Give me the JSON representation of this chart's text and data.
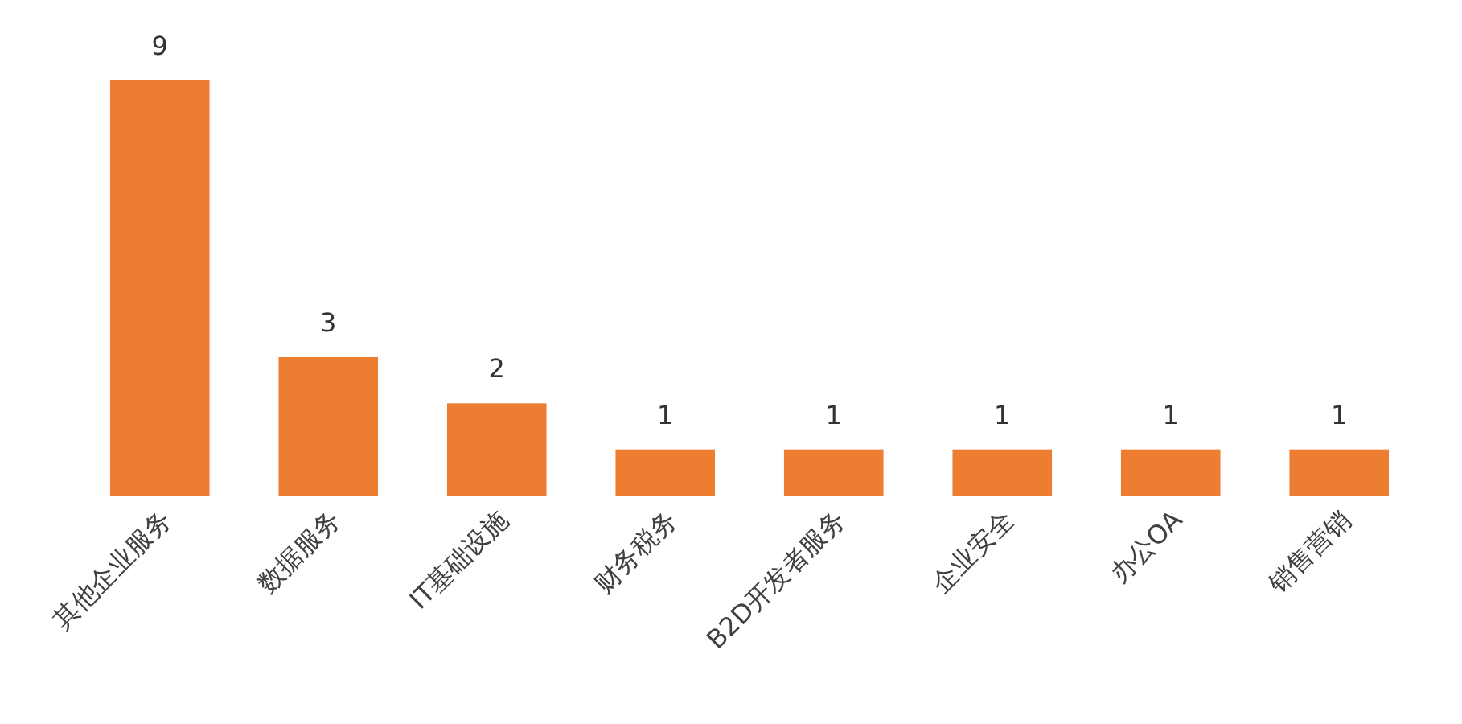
{
  "chart_data": {
    "type": "bar",
    "categories": [
      "其他企业服务",
      "数据服务",
      "IT基础设施",
      "财务税务",
      "B2D开发者服务",
      "企业安全",
      "办公OA",
      "销售营销"
    ],
    "values": [
      9,
      3,
      2,
      1,
      1,
      1,
      1,
      1
    ],
    "color": "#ed7d31",
    "data_labels": true
  }
}
